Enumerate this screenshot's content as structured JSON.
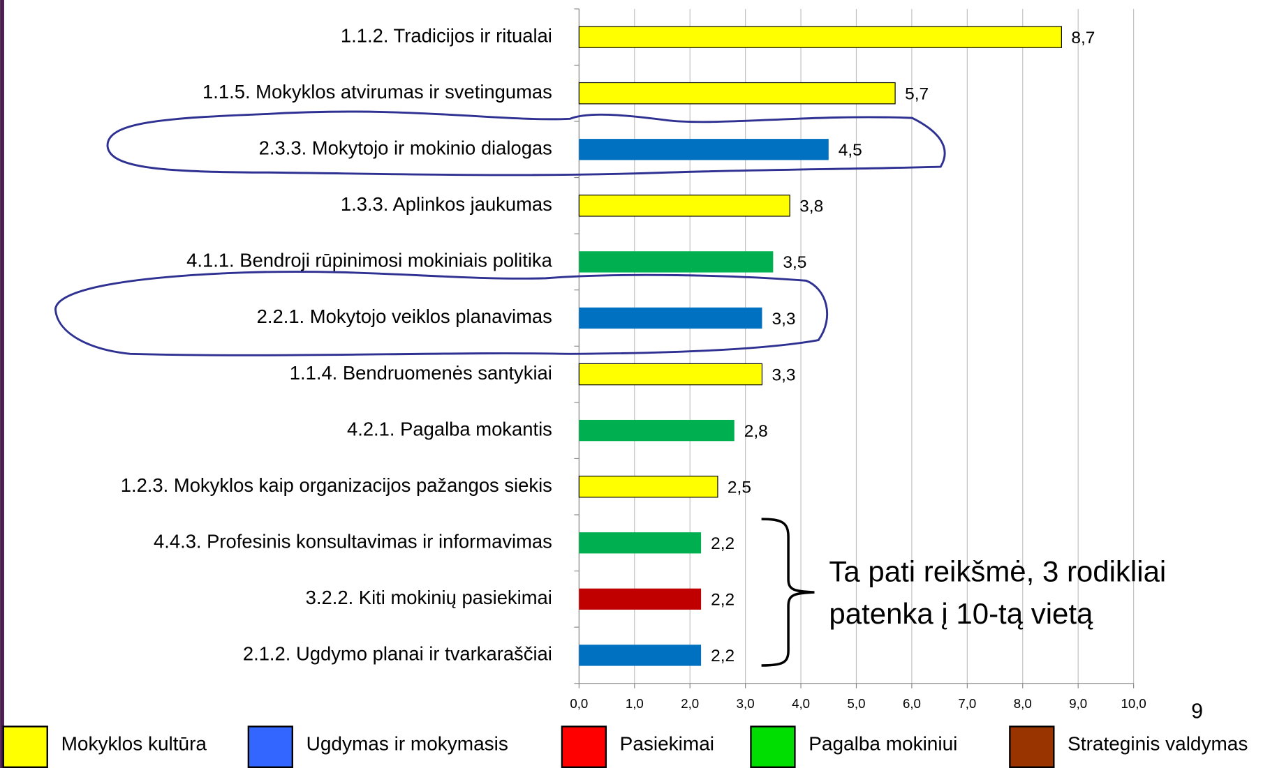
{
  "chart_data": {
    "type": "hbar",
    "categories": [
      "1.1.2. Tradicijos ir ritualai",
      "1.1.5. Mokyklos atvirumas ir svetingumas",
      "2.3.3. Mokytojo ir mokinio dialogas",
      "1.3.3. Aplinkos jaukumas",
      "4.1.1. Bendroji rūpinimosi mokiniais politika",
      "2.2.1. Mokytojo veiklos planavimas",
      "1.1.4. Bendruomenės  santykiai",
      "4.2.1. Pagalba mokantis",
      "1.2.3. Mokyklos kaip organizacijos pažangos siekis",
      "4.4.3. Profesinis konsultavimas ir informavimas",
      "3.2.2. Kiti mokinių pasiekimai",
      "2.1.2. Ugdymo planai ir tvarkaraščiai"
    ],
    "values": [
      8.7,
      5.7,
      4.5,
      3.8,
      3.5,
      3.3,
      3.3,
      2.8,
      2.5,
      2.2,
      2.2,
      2.2
    ],
    "value_labels": [
      "8,7",
      "5,7",
      "4,5",
      "3,8",
      "3,5",
      "3,3",
      "3,3",
      "2,8",
      "2,5",
      "2,2",
      "2,2",
      "2,2"
    ],
    "colors": [
      "#ffff00",
      "#ffff00",
      "#0070c0",
      "#ffff00",
      "#00b050",
      "#0070c0",
      "#ffff00",
      "#00b050",
      "#ffff00",
      "#00b050",
      "#c00000",
      "#0070c0"
    ],
    "xlim": [
      0,
      10
    ],
    "xticks": [
      {
        "value": 0,
        "label": "0,0"
      },
      {
        "value": 1,
        "label": "1,0"
      },
      {
        "value": 2,
        "label": "2,0"
      },
      {
        "value": 3,
        "label": "3,0"
      },
      {
        "value": 4,
        "label": "4,0"
      },
      {
        "value": 5,
        "label": "5,0"
      },
      {
        "value": 6,
        "label": "6,0"
      },
      {
        "value": 7,
        "label": "7,0"
      },
      {
        "value": 8,
        "label": "8,0"
      },
      {
        "value": 9,
        "label": "9,0"
      },
      {
        "value": 10,
        "label": "10,0"
      }
    ],
    "grid": true,
    "annotation": [
      "Ta pati reikšmė, 3 rodikliai",
      "patenka į 10-tą vietą"
    ],
    "page_number": "9",
    "legend": [
      {
        "name": "Mokyklos kultūra",
        "color": "#ffff00"
      },
      {
        "name": "Ugdymas ir mokymasis",
        "color": "#3366ff"
      },
      {
        "name": "Pasiekimai",
        "color": "#ff0000"
      },
      {
        "name": "Pagalba mokiniui",
        "color": "#00dd00"
      },
      {
        "name": "Strateginis valdymas",
        "color": "#993300"
      }
    ]
  }
}
